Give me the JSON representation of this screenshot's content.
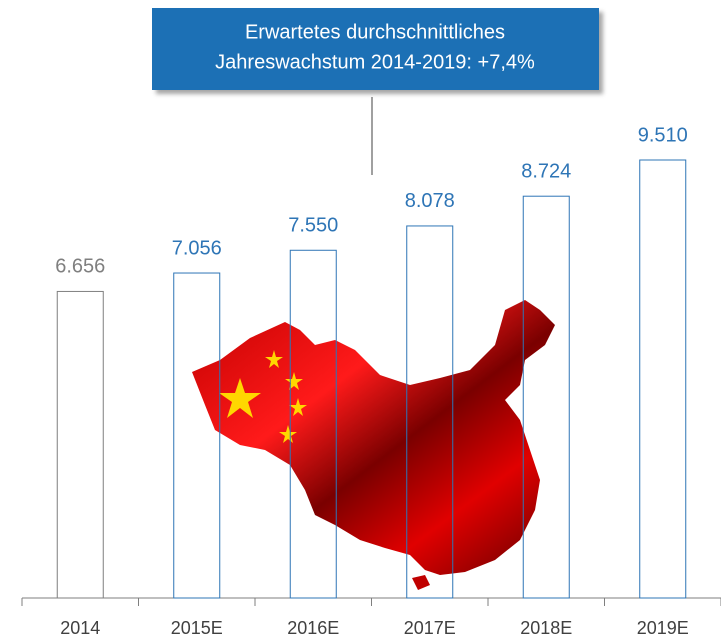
{
  "chart_data": {
    "type": "bar",
    "annotation": [
      "Erwartetes durchschnittliches",
      "Jahreswachstum 2014-2019: +7,4%"
    ],
    "categories": [
      "2014",
      "2015E",
      "2016E",
      "2017E",
      "2018E",
      "2019E"
    ],
    "values": [
      6656,
      7056,
      7550,
      8078,
      8724,
      9510
    ],
    "value_labels": [
      "6.656",
      "7.056",
      "7.550",
      "8.078",
      "8.724",
      "9.510"
    ],
    "colors": [
      "#7f7f7f",
      "#2e75b6",
      "#2e75b6",
      "#2e75b6",
      "#2e75b6",
      "#2e75b6"
    ],
    "annotation_color": "#1f6fb5"
  }
}
